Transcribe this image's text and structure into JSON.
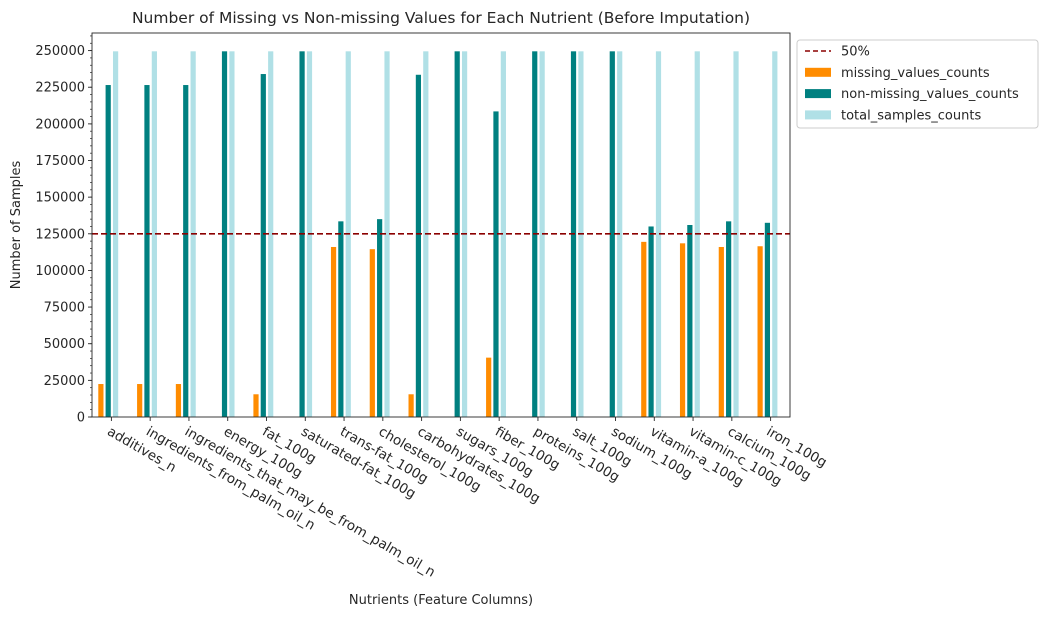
{
  "chart_data": {
    "type": "bar",
    "title": "Number of Missing vs Non-missing Values for Each Nutrient (Before Imputation)",
    "xlabel": "Nutrients (Feature Columns)",
    "ylabel": "Number of Samples",
    "ylim": [
      0,
      262000
    ],
    "yticks": [
      0,
      25000,
      50000,
      75000,
      100000,
      125000,
      150000,
      175000,
      200000,
      225000,
      250000
    ],
    "categories": [
      "additives_n",
      "ingredients_from_palm_oil_n",
      "ingredients_that_may_be_from_palm_oil_n",
      "energy_100g",
      "fat_100g",
      "saturated-fat_100g",
      "trans-fat_100g",
      "cholesterol_100g",
      "carbohydrates_100g",
      "sugars_100g",
      "fiber_100g",
      "proteins_100g",
      "salt_100g",
      "sodium_100g",
      "vitamin-a_100g",
      "vitamin-c_100g",
      "calcium_100g",
      "iron_100g"
    ],
    "series": [
      {
        "name": "missing_values_counts",
        "color": "#ff8c00",
        "values": [
          22500,
          22500,
          22500,
          0,
          15500,
          0,
          116000,
          114500,
          15500,
          0,
          40500,
          0,
          0,
          0,
          119500,
          118500,
          116000,
          116500
        ]
      },
      {
        "name": "non-missing_values_counts",
        "color": "#008080",
        "values": [
          226500,
          226500,
          226500,
          249500,
          234000,
          249500,
          133500,
          135000,
          233500,
          249500,
          208500,
          249500,
          249500,
          249500,
          130000,
          131000,
          133500,
          132500
        ]
      },
      {
        "name": "total_samples_counts",
        "color": "#b0e0e6",
        "values": [
          249500,
          249500,
          249500,
          249500,
          249500,
          249500,
          249500,
          249500,
          249500,
          249500,
          249500,
          249500,
          249500,
          249500,
          249500,
          249500,
          249500,
          249500
        ]
      }
    ],
    "reference_line": {
      "name": "50%",
      "value": 125000,
      "color": "#8b0000",
      "style": "dashed"
    },
    "legend_position": "outside-top-right",
    "grid": false
  }
}
